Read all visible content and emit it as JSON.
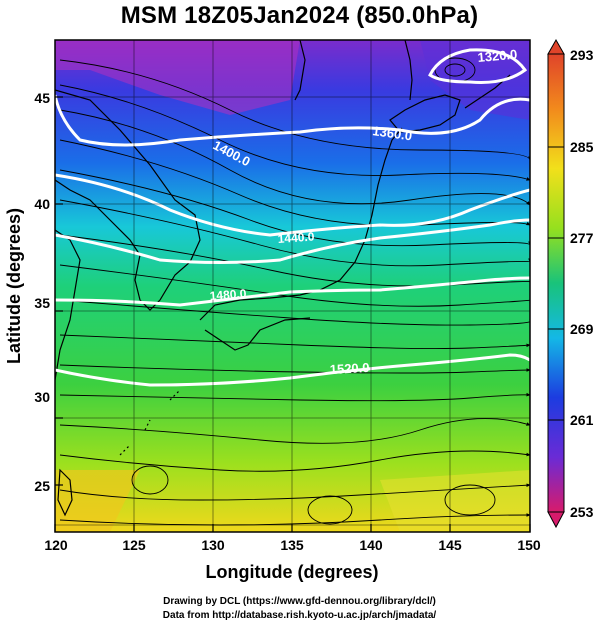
{
  "title": "MSM 18Z05Jan2024 (850.0hPa)",
  "xaxis": {
    "label": "Longitude (degrees)",
    "ticks": [
      "120",
      "125",
      "130",
      "135",
      "140",
      "145",
      "150"
    ],
    "range": [
      120,
      150
    ]
  },
  "yaxis": {
    "label": "Latitude  (degrees)",
    "ticks": [
      "25",
      "30",
      "35",
      "40",
      "45"
    ],
    "range": [
      22.5,
      48
    ]
  },
  "colorbar": {
    "labels": [
      "293",
      "285",
      "277",
      "269",
      "261",
      "253"
    ],
    "range": [
      253,
      293
    ],
    "colors": [
      "#d81b6b",
      "#6a2bd6",
      "#1c3ce0",
      "#14b8e6",
      "#19c37a",
      "#96e01e",
      "#f2e01b",
      "#f28a1c",
      "#e0442a"
    ]
  },
  "contours": [
    {
      "label": "1320.0"
    },
    {
      "label": "1360.0"
    },
    {
      "label": "1400.0"
    },
    {
      "label": "1440.0"
    },
    {
      "label": "1480.0"
    },
    {
      "label": "1520.0"
    }
  ],
  "credits": [
    "Drawing by DCL (https://www.gfd-dennou.org/library/dcl/)",
    "Data from http://database.rish.kyoto-u.ac.jp/arch/jmadata/"
  ]
}
